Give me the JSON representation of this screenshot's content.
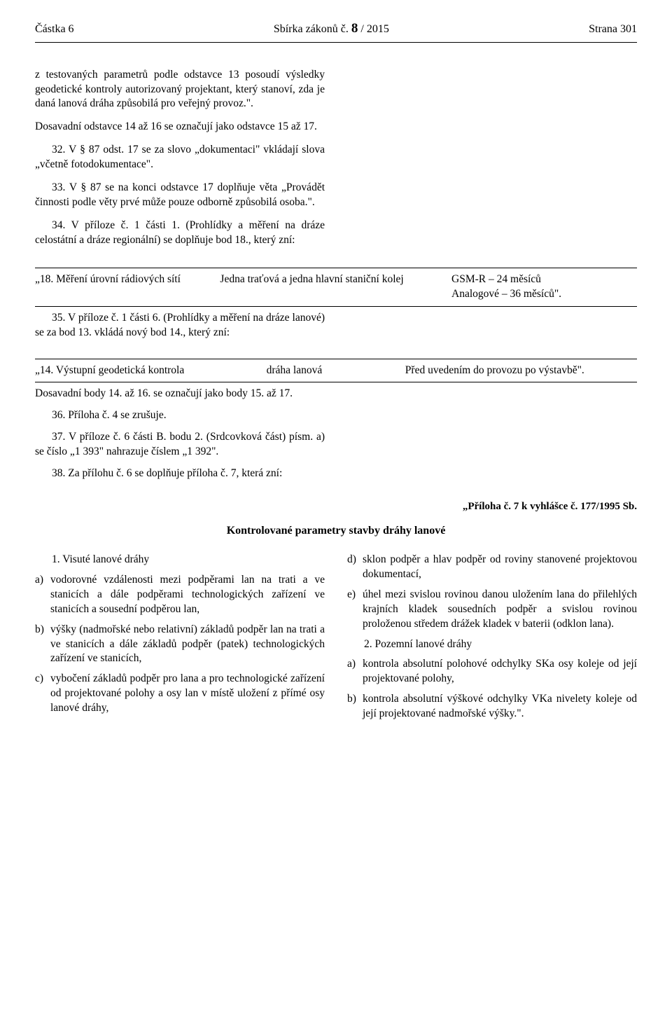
{
  "header": {
    "left": "Částka 6",
    "center_prefix": "Sbírka zákonů č. ",
    "center_bold": "8",
    "center_suffix": " / 2015",
    "right": "Strana 301"
  },
  "intro_paragraphs": [
    "z testovaných parametrů podle odstavce 13 posoudí výsledky geodetické kontroly autorizovaný projektant, který stanoví, zda je daná lanová dráha způsobilá pro veřejný provoz.\".",
    "Dosavadní odstavce 14 až 16 se označují jako odstavce 15 až 17.",
    "32. V § 87 odst. 17 se za slovo „dokumentaci\" vkládají slova „včetně fotodokumentace\".",
    "33. V § 87 se na konci odstavce 17 doplňuje věta „Provádět činnosti podle věty prvé může pouze odborně způsobilá osoba.\".",
    "34. V příloze č. 1 části 1. (Prohlídky a měření na dráze celostátní a dráze regionální) se doplňuje bod 18., který zní:"
  ],
  "table1": {
    "c1": "„18. Měření úrovní rádiových sítí",
    "c2": "Jedna traťová a jedna hlavní staniční kolej",
    "c3": "GSM-R – 24 měsíců\nAnalogové – 36 měsíců\"."
  },
  "mid_para_1": "35. V příloze č. 1 části 6. (Prohlídky a měření na dráze lanové) se za bod 13. vkládá nový bod 14., který zní:",
  "table2": {
    "a": "„14. Výstupní geodetická kontrola",
    "b": "dráha lanová",
    "c": "Před uvedením do provozu po výstavbě\"."
  },
  "mid_paragraphs_2": [
    "Dosavadní body 14. až 16. se označují jako body 15. až 17.",
    "36. Příloha č. 4 se zrušuje.",
    "37. V příloze č. 6 části B. bodu 2. (Srdcovková část) písm. a) se číslo „1 393\" nahrazuje číslem „1 392\".",
    "38. Za přílohu č. 6 se doplňuje příloha č. 7, která zní:"
  ],
  "appendix_label": "„Příloha č. 7 k vyhlášce č. 177/1995 Sb.",
  "appendix_title": "Kontrolované parametry stavby dráhy lanové",
  "left_list": {
    "heading": "1. Visuté lanové dráhy",
    "items": [
      {
        "m": "a)",
        "t": "vodorovné vzdálenosti mezi podpěrami lan na trati a ve stanicích a dále podpěrami technologických zařízení ve stanicích a sousední podpěrou lan,"
      },
      {
        "m": "b)",
        "t": "výšky (nadmořské nebo relativní) základů podpěr lan na trati a ve stanicích a dále základů podpěr (patek) technologických zařízení ve stanicích,"
      },
      {
        "m": "c)",
        "t": "vybočení základů podpěr pro lana a pro technologické zařízení od projektované polohy a osy lan v místě uložení z přímé osy lanové dráhy,"
      }
    ]
  },
  "right_list": {
    "items_top": [
      {
        "m": "d)",
        "t": "sklon podpěr a hlav podpěr od roviny stanovené projektovou dokumentací,"
      },
      {
        "m": "e)",
        "t": "úhel mezi svislou rovinou danou uložením lana do přilehlých krajních kladek sousedních podpěr a svislou rovinou proloženou středem drážek kladek v baterii (odklon lana)."
      }
    ],
    "heading2": "2. Pozemní lanové dráhy",
    "items_bottom": [
      {
        "m": "a)",
        "t": "kontrola absolutní polohové odchylky SKa osy koleje od její projektované polohy,"
      },
      {
        "m": "b)",
        "t": "kontrola absolutní výškové odchylky VKa nivelety koleje od její projektované nadmořské výšky.\"."
      }
    ]
  }
}
